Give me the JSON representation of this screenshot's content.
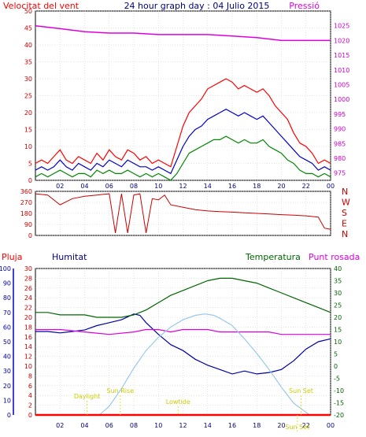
{
  "chart_data": [
    {
      "type": "line",
      "title": "24 hour graph day : 04 Julio 2015",
      "left_axis_label": "Velocitat del vent",
      "right_axis_label": "Pressió",
      "left_ticks": [
        0,
        5,
        10,
        15,
        20,
        25,
        30,
        35,
        40,
        45,
        50
      ],
      "right_ticks": [
        975,
        980,
        985,
        990,
        995,
        1000,
        1005,
        1010,
        1015,
        1020,
        1025
      ],
      "left_range": [
        0,
        50
      ],
      "right_range": [
        972.5,
        1030
      ],
      "x_ticks": [
        "02",
        "04",
        "06",
        "08",
        "10",
        "12",
        "14",
        "16",
        "18",
        "20",
        "22",
        "00"
      ],
      "x_range": [
        0,
        24
      ],
      "grid": true,
      "colors": {
        "gust": "#ff0000",
        "avg": "#0000cc",
        "min": "#008800",
        "pressure": "#dd00dd"
      },
      "series": [
        {
          "key": "gust",
          "x": [
            0,
            0.5,
            1,
            1.5,
            2,
            2.5,
            3,
            3.5,
            4,
            4.5,
            5,
            5.5,
            6,
            6.5,
            7,
            7.5,
            8,
            8.5,
            9,
            9.5,
            10,
            10.5,
            11,
            11.5,
            12,
            12.5,
            13,
            13.5,
            14,
            14.5,
            15,
            15.5,
            16,
            16.5,
            17,
            17.5,
            18,
            18.5,
            19,
            19.5,
            20,
            20.5,
            21,
            21.5,
            22,
            22.5,
            23,
            23.5,
            24
          ],
          "values": [
            5,
            6,
            5,
            7,
            9,
            6,
            5,
            7,
            6,
            5,
            8,
            6,
            9,
            7,
            6,
            9,
            8,
            6,
            7,
            5,
            6,
            5,
            4,
            10,
            16,
            20,
            22,
            24,
            27,
            28,
            29,
            30,
            29,
            27,
            28,
            27,
            26,
            27,
            25,
            22,
            20,
            18,
            14,
            11,
            10,
            8,
            5,
            6,
            5
          ]
        },
        {
          "key": "avg",
          "x": [
            0,
            0.5,
            1,
            1.5,
            2,
            2.5,
            3,
            3.5,
            4,
            4.5,
            5,
            5.5,
            6,
            6.5,
            7,
            7.5,
            8,
            8.5,
            9,
            9.5,
            10,
            10.5,
            11,
            11.5,
            12,
            12.5,
            13,
            13.5,
            14,
            14.5,
            15,
            15.5,
            16,
            16.5,
            17,
            17.5,
            18,
            18.5,
            19,
            19.5,
            20,
            20.5,
            21,
            21.5,
            22,
            22.5,
            23,
            23.5,
            24
          ],
          "values": [
            3,
            4,
            3,
            4,
            6,
            4,
            3,
            5,
            4,
            3,
            5,
            4,
            6,
            5,
            4,
            6,
            5,
            4,
            4,
            3,
            4,
            3,
            2,
            6,
            10,
            13,
            15,
            16,
            18,
            19,
            20,
            21,
            20,
            19,
            20,
            19,
            18,
            19,
            17,
            15,
            13,
            11,
            9,
            7,
            6,
            5,
            3,
            4,
            3
          ]
        },
        {
          "key": "min",
          "x": [
            0,
            0.5,
            1,
            1.5,
            2,
            2.5,
            3,
            3.5,
            4,
            4.5,
            5,
            5.5,
            6,
            6.5,
            7,
            7.5,
            8,
            8.5,
            9,
            9.5,
            10,
            10.5,
            11,
            11.5,
            12,
            12.5,
            13,
            13.5,
            14,
            14.5,
            15,
            15.5,
            16,
            16.5,
            17,
            17.5,
            18,
            18.5,
            19,
            19.5,
            20,
            20.5,
            21,
            21.5,
            22,
            22.5,
            23,
            23.5,
            24
          ],
          "values": [
            1,
            2,
            1,
            2,
            3,
            2,
            1,
            2,
            2,
            1,
            3,
            2,
            3,
            2,
            2,
            3,
            2,
            1,
            2,
            1,
            2,
            1,
            0,
            2,
            5,
            8,
            9,
            10,
            11,
            12,
            12,
            13,
            12,
            11,
            12,
            11,
            11,
            12,
            10,
            9,
            8,
            6,
            5,
            3,
            2,
            2,
            1,
            2,
            1
          ]
        },
        {
          "key": "pressure",
          "x": [
            0,
            2,
            4,
            6,
            8,
            10,
            12,
            14,
            16,
            18,
            20,
            22,
            24
          ],
          "values": [
            1025,
            1024,
            1023,
            1022.5,
            1022.5,
            1022,
            1022,
            1022,
            1021.5,
            1021,
            1020,
            1020,
            1020
          ]
        }
      ]
    },
    {
      "type": "line",
      "title": "",
      "right_axis_label": "N W S E N",
      "left_ticks": [
        0,
        90,
        180,
        270,
        360
      ],
      "right_ticks": [
        "N",
        "W",
        "S",
        "E",
        "N"
      ],
      "left_range": [
        0,
        360
      ],
      "x_ticks": [
        "02",
        "04",
        "06",
        "08",
        "10",
        "12",
        "14",
        "16",
        "18",
        "20",
        "22",
        "00"
      ],
      "x_range": [
        0,
        24
      ],
      "grid": true,
      "colors": {
        "direction": "#cc0000"
      },
      "series": [
        {
          "key": "direction",
          "x": [
            0,
            1,
            2,
            3,
            4,
            5,
            6,
            6.5,
            7,
            7.5,
            8,
            8.5,
            9,
            9.5,
            10,
            10.5,
            11,
            12,
            13,
            14,
            15,
            16,
            17,
            18,
            19,
            20,
            21,
            22,
            23,
            23.5,
            24
          ],
          "values": [
            340,
            330,
            250,
            300,
            320,
            330,
            340,
            20,
            340,
            20,
            330,
            340,
            20,
            300,
            290,
            330,
            250,
            230,
            210,
            200,
            195,
            190,
            185,
            180,
            175,
            170,
            165,
            160,
            150,
            60,
            50
          ]
        }
      ]
    },
    {
      "type": "line",
      "title": "",
      "labels": {
        "pluja": "Pluja",
        "humitat": "Humitat",
        "temperatura": "Temperatura",
        "punt_rosada": "Punt rosada"
      },
      "left_outer_ticks": [
        0,
        10,
        20,
        30,
        40,
        50,
        60,
        70,
        80,
        90,
        100
      ],
      "left_inner_ticks": [
        0,
        2,
        4,
        6,
        8,
        10,
        12,
        14,
        16,
        18,
        20,
        22,
        24,
        26,
        28,
        30
      ],
      "right_ticks": [
        -20,
        -15,
        -10,
        -5,
        0,
        5,
        10,
        15,
        20,
        25,
        30,
        35,
        40
      ],
      "right_range": [
        -20,
        40
      ],
      "x_ticks": [
        "02",
        "04",
        "06",
        "08",
        "10",
        "12",
        "14",
        "16",
        "18",
        "20",
        "22",
        "00"
      ],
      "x_range": [
        0,
        24
      ],
      "grid": true,
      "colors": {
        "humitat": "#0000aa",
        "temperatura": "#006600",
        "punt_rosada": "#dd00dd",
        "solar": "#99c8ee",
        "pluja": "#ff0000",
        "events": "#dddd00"
      },
      "annotations": [
        {
          "text": "Daylight",
          "x": 4.2
        },
        {
          "text": "Sun Rise",
          "x": 6.9
        },
        {
          "text": "Lowtide",
          "x": 11.6
        },
        {
          "text": "Sun Set",
          "x": 21.6
        },
        {
          "text": "Sun Set",
          "x": 21.3
        }
      ],
      "series": [
        {
          "key": "humitat",
          "x": [
            0,
            1,
            2,
            3,
            4,
            5,
            6,
            7,
            7.5,
            8,
            8.5,
            9,
            10,
            11,
            12,
            13,
            14,
            15,
            16,
            17,
            18,
            19,
            20,
            21,
            22,
            23,
            24
          ],
          "values": [
            57,
            57,
            56,
            57,
            58,
            61,
            63,
            65,
            67,
            69,
            68,
            63,
            55,
            48,
            44,
            38,
            34,
            31,
            28,
            30,
            28,
            29,
            31,
            37,
            45,
            50,
            52
          ]
        },
        {
          "key": "temperatura",
          "x": [
            0,
            1,
            2,
            3,
            4,
            5,
            6,
            7,
            8,
            9,
            10,
            11,
            12,
            13,
            14,
            15,
            16,
            17,
            18,
            19,
            20,
            21,
            22,
            23,
            24
          ],
          "values": [
            22,
            22,
            21,
            21,
            21,
            20,
            20,
            20,
            21,
            23,
            26,
            29,
            31,
            33,
            35,
            36,
            36,
            35,
            34,
            32,
            30,
            28,
            26,
            24,
            22
          ]
        },
        {
          "key": "punt_rosada",
          "x": [
            0,
            2,
            4,
            6,
            8,
            9,
            10,
            11,
            12,
            13,
            14,
            15,
            16,
            17,
            18,
            19,
            20,
            21,
            22,
            23,
            24
          ],
          "values": [
            15,
            15,
            14,
            13,
            14,
            15,
            15,
            14,
            15,
            15,
            15,
            14,
            14,
            14,
            14,
            14,
            13,
            13,
            13,
            13,
            13
          ]
        },
        {
          "key": "solar",
          "x": [
            5.2,
            6,
            7,
            8,
            9,
            10,
            11,
            12,
            13,
            13.8,
            14.5,
            15,
            16,
            17,
            18,
            19,
            20,
            21,
            22.3
          ],
          "values": [
            0,
            6,
            18,
            32,
            44,
            53,
            60,
            65,
            68,
            69,
            68,
            66,
            61,
            52,
            42,
            31,
            19,
            8,
            0
          ]
        },
        {
          "key": "pluja",
          "x": [
            0,
            24
          ],
          "values": [
            0,
            0
          ]
        }
      ]
    }
  ]
}
